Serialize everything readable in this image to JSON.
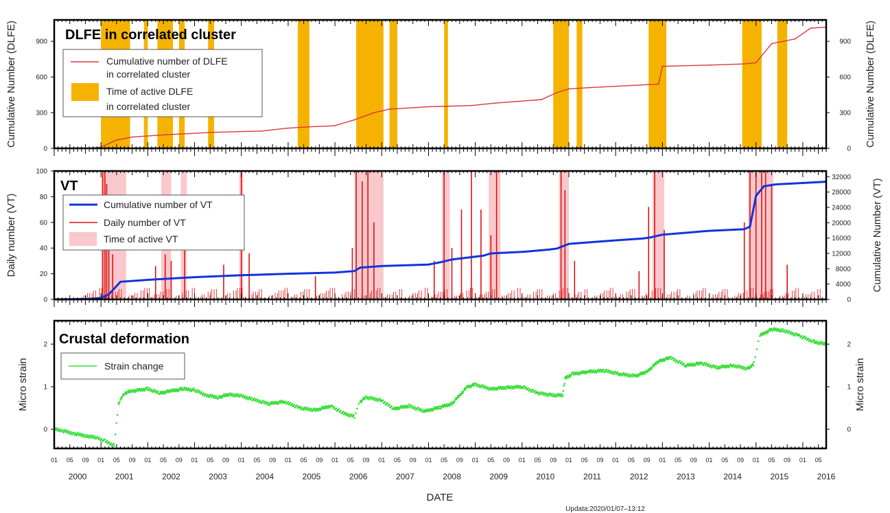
{
  "chart_data": [
    {
      "type": "line",
      "title": "DLFE in correlated cluster",
      "ylabel": "Cumulative Number (DLFE)",
      "ylabel_right": "Cumulative Number (DLFE)",
      "ylim": [
        0,
        1080
      ],
      "yticks": [
        0,
        300,
        600,
        900
      ],
      "legend": [
        {
          "line1": "Cumulative number of DLFE",
          "line2": "in correlated cluster",
          "color": "#d9363e",
          "kind": "line"
        },
        {
          "line1": "Time of active DLFE",
          "line2": "in correlated cluster",
          "color": "#f5b300",
          "kind": "box"
        }
      ],
      "series": [
        {
          "name": "Cumulative number of DLFE in correlated cluster",
          "color": "#d9363e",
          "x": [
            "2000-01-01",
            "2000-10-01",
            "2001-01-01",
            "2001-05-01",
            "2001-09-01",
            "2002-06-01",
            "2002-12-01",
            "2003-06-01",
            "2004-06-01",
            "2005-01-01",
            "2005-06-01",
            "2006-01-01",
            "2006-06-01",
            "2006-11-01",
            "2007-03-01",
            "2008-01-01",
            "2008-12-01",
            "2009-06-01",
            "2010-06-01",
            "2010-10-01",
            "2011-01-01",
            "2011-06-01",
            "2012-06-01",
            "2012-12-01",
            "2013-01-01",
            "2014-01-01",
            "2014-10-01",
            "2015-01-01",
            "2015-05-01",
            "2015-11-01",
            "2016-03-01",
            "2016-07-01"
          ],
          "y": [
            0,
            0,
            10,
            70,
            95,
            115,
            125,
            135,
            145,
            170,
            180,
            190,
            240,
            300,
            330,
            350,
            360,
            380,
            410,
            470,
            500,
            510,
            530,
            540,
            690,
            700,
            710,
            720,
            880,
            920,
            1010,
            1020
          ]
        }
      ],
      "active_periods": [
        [
          "2001-01-01",
          "2001-08-15"
        ],
        [
          "2001-12-01",
          "2002-01-01"
        ],
        [
          "2002-03-15",
          "2002-07-15"
        ],
        [
          "2002-09-01",
          "2002-10-15"
        ],
        [
          "2003-04-15",
          "2003-06-01"
        ],
        [
          "2005-03-15",
          "2005-06-15"
        ],
        [
          "2006-06-15",
          "2007-01-15"
        ],
        [
          "2007-03-01",
          "2007-05-01"
        ],
        [
          "2008-05-01",
          "2008-06-01"
        ],
        [
          "2010-09-01",
          "2011-01-01"
        ],
        [
          "2011-03-01",
          "2011-04-15"
        ],
        [
          "2012-09-15",
          "2013-02-01"
        ],
        [
          "2014-09-15",
          "2015-02-15"
        ],
        [
          "2015-06-15",
          "2015-09-01"
        ]
      ]
    },
    {
      "type": "bar",
      "title": "VT",
      "ylabel": "Daily number (VT)",
      "ylabel_right": "Cumulative Number (VT)",
      "ylim": [
        0,
        100
      ],
      "yticks": [
        0,
        20,
        40,
        60,
        80,
        100
      ],
      "ylim_right": [
        0,
        33500
      ],
      "yticks_right": [
        0,
        4000,
        8000,
        12000,
        16000,
        20000,
        24000,
        28000,
        32000
      ],
      "legend": [
        {
          "label": "Cumulative number of VT",
          "color": "#1133dd",
          "kind": "line"
        },
        {
          "label": "Daily number of VT",
          "color": "#e01010",
          "kind": "line"
        },
        {
          "label": "Time of active VT",
          "color": "#f9c8cc",
          "kind": "box"
        }
      ],
      "series": [
        {
          "name": "Cumulative number of VT",
          "color": "#1133dd",
          "axis": "right",
          "x": [
            "2000-01-01",
            "2000-10-01",
            "2001-01-01",
            "2001-03-01",
            "2001-06-01",
            "2002-01-01",
            "2003-01-01",
            "2004-01-01",
            "2005-01-01",
            "2006-01-01",
            "2006-06-01",
            "2006-07-15",
            "2007-01-01",
            "2008-01-01",
            "2008-04-01",
            "2008-07-01",
            "2009-03-01",
            "2009-05-01",
            "2010-01-01",
            "2010-08-01",
            "2010-10-01",
            "2011-01-01",
            "2012-01-01",
            "2012-08-01",
            "2012-10-01",
            "2013-01-01",
            "2014-01-01",
            "2014-10-01",
            "2014-11-15",
            "2015-01-01",
            "2015-03-01",
            "2015-06-01",
            "2016-07-01"
          ],
          "y": [
            0,
            100,
            400,
            1300,
            4600,
            5100,
            5800,
            6300,
            6700,
            7000,
            7400,
            8300,
            8700,
            9100,
            9700,
            10400,
            11400,
            12000,
            12400,
            13000,
            13300,
            14500,
            15400,
            15900,
            16200,
            16900,
            17900,
            18300,
            19000,
            27000,
            29500,
            30000,
            30700
          ]
        },
        {
          "name": "Daily number of VT",
          "color": "#e01010",
          "axis": "left",
          "peaks": [
            {
              "x": "2001-01-15",
              "y": 100
            },
            {
              "x": "2001-02-01",
              "y": 100
            },
            {
              "x": "2001-02-15",
              "y": 90
            },
            {
              "x": "2001-03-01",
              "y": 60
            },
            {
              "x": "2001-04-01",
              "y": 35
            },
            {
              "x": "2002-03-01",
              "y": 26
            },
            {
              "x": "2002-05-15",
              "y": 35
            },
            {
              "x": "2002-07-01",
              "y": 30
            },
            {
              "x": "2002-10-15",
              "y": 38
            },
            {
              "x": "2003-08-15",
              "y": 27
            },
            {
              "x": "2004-01-01",
              "y": 100
            },
            {
              "x": "2004-03-01",
              "y": 36
            },
            {
              "x": "2005-08-01",
              "y": 18
            },
            {
              "x": "2006-05-15",
              "y": 40
            },
            {
              "x": "2006-06-15",
              "y": 100
            },
            {
              "x": "2006-08-01",
              "y": 92
            },
            {
              "x": "2006-09-15",
              "y": 100
            },
            {
              "x": "2006-11-01",
              "y": 60
            },
            {
              "x": "2008-02-15",
              "y": 30
            },
            {
              "x": "2008-05-01",
              "y": 100
            },
            {
              "x": "2008-07-01",
              "y": 40
            },
            {
              "x": "2008-09-15",
              "y": 70
            },
            {
              "x": "2008-12-01",
              "y": 100
            },
            {
              "x": "2009-02-15",
              "y": 70
            },
            {
              "x": "2009-05-01",
              "y": 50
            },
            {
              "x": "2009-06-15",
              "y": 100
            },
            {
              "x": "2010-11-01",
              "y": 100
            },
            {
              "x": "2010-12-01",
              "y": 85
            },
            {
              "x": "2011-02-15",
              "y": 30
            },
            {
              "x": "2012-07-01",
              "y": 22
            },
            {
              "x": "2012-09-15",
              "y": 72
            },
            {
              "x": "2012-11-01",
              "y": 100
            },
            {
              "x": "2013-01-15",
              "y": 54
            },
            {
              "x": "2014-10-01",
              "y": 60
            },
            {
              "x": "2014-11-15",
              "y": 100
            },
            {
              "x": "2015-01-01",
              "y": 100
            },
            {
              "x": "2015-02-15",
              "y": 100
            },
            {
              "x": "2015-03-15",
              "y": 100
            },
            {
              "x": "2015-05-01",
              "y": 90
            },
            {
              "x": "2015-09-01",
              "y": 27
            }
          ]
        }
      ],
      "active_periods": [
        [
          "2001-01-01",
          "2001-07-15"
        ],
        [
          "2002-04-15",
          "2002-07-01"
        ],
        [
          "2002-09-15",
          "2002-11-01"
        ],
        [
          "2003-12-15",
          "2004-01-15"
        ],
        [
          "2006-06-01",
          "2007-01-15"
        ],
        [
          "2008-04-15",
          "2008-06-15"
        ],
        [
          "2009-04-15",
          "2009-07-15"
        ],
        [
          "2010-10-15",
          "2011-01-01"
        ],
        [
          "2012-10-15",
          "2013-01-15"
        ],
        [
          "2014-11-01",
          "2015-05-15"
        ]
      ]
    },
    {
      "type": "scatter",
      "title": "Crustal deformation",
      "ylabel": "Micro strain",
      "ylabel_right": "Micro strain",
      "ylim": [
        -0.45,
        2.55
      ],
      "yticks": [
        0,
        1,
        2
      ],
      "legend": [
        {
          "label": "Strain change",
          "color": "#33dd33",
          "kind": "line"
        }
      ],
      "series": [
        {
          "name": "Strain change",
          "color": "#33dd33",
          "x": [
            "2000-01-01",
            "2000-03-01",
            "2000-06-01",
            "2000-09-01",
            "2000-12-01",
            "2001-02-01",
            "2001-04-15",
            "2001-05-15",
            "2001-07-01",
            "2001-09-01",
            "2002-01-01",
            "2002-04-01",
            "2002-07-01",
            "2002-10-01",
            "2003-01-01",
            "2003-04-01",
            "2003-07-01",
            "2003-10-01",
            "2004-01-01",
            "2004-04-01",
            "2004-08-01",
            "2004-12-01",
            "2005-04-01",
            "2005-08-01",
            "2005-12-01",
            "2006-03-01",
            "2006-06-01",
            "2006-07-15",
            "2006-09-01",
            "2007-01-01",
            "2007-04-01",
            "2007-08-01",
            "2007-12-01",
            "2008-04-01",
            "2008-07-01",
            "2008-11-01",
            "2009-01-01",
            "2009-05-01",
            "2009-09-01",
            "2010-01-01",
            "2010-05-01",
            "2010-09-01",
            "2010-11-15",
            "2010-12-01",
            "2011-02-01",
            "2011-06-01",
            "2011-10-01",
            "2012-02-01",
            "2012-06-01",
            "2012-09-01",
            "2012-12-01",
            "2013-03-01",
            "2013-07-01",
            "2013-11-01",
            "2014-03-01",
            "2014-07-01",
            "2014-11-01",
            "2014-12-15",
            "2015-02-01",
            "2015-05-01",
            "2015-08-01",
            "2015-12-01",
            "2016-04-01",
            "2016-07-01"
          ],
          "y": [
            0.0,
            -0.03,
            -0.1,
            -0.15,
            -0.2,
            -0.28,
            -0.38,
            0.6,
            0.85,
            0.9,
            0.95,
            0.85,
            0.9,
            0.95,
            0.92,
            0.8,
            0.75,
            0.82,
            0.78,
            0.7,
            0.6,
            0.65,
            0.5,
            0.45,
            0.55,
            0.38,
            0.3,
            0.65,
            0.75,
            0.68,
            0.48,
            0.55,
            0.42,
            0.52,
            0.6,
            1.0,
            1.05,
            0.95,
            0.98,
            1.0,
            0.85,
            0.8,
            0.8,
            1.2,
            1.3,
            1.35,
            1.38,
            1.3,
            1.25,
            1.35,
            1.6,
            1.68,
            1.5,
            1.55,
            1.45,
            1.5,
            1.42,
            1.55,
            2.2,
            2.35,
            2.32,
            2.2,
            2.05,
            2.0
          ]
        }
      ]
    }
  ],
  "x_axis": {
    "label": "DATE",
    "years": [
      "2000",
      "2001",
      "2002",
      "2003",
      "2004",
      "2005",
      "2006",
      "2007",
      "2008",
      "2009",
      "2010",
      "2011",
      "2012",
      "2013",
      "2014",
      "2015",
      "2016"
    ],
    "month_labels": [
      "01",
      "05",
      "09"
    ]
  },
  "footer": "Updata:2020/01/07–13:12"
}
